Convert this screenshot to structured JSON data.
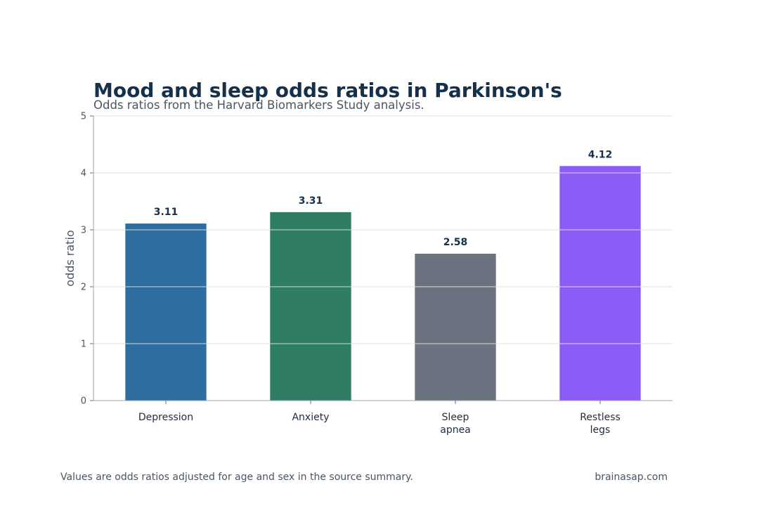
{
  "header": {
    "title": "Mood and sleep odds ratios in Parkinson's",
    "subtitle": "Odds ratios from the Harvard Biomarkers Study analysis."
  },
  "footer": {
    "note": "Values are odds ratios adjusted for age and sex in the source summary.",
    "source": "brainasap.com"
  },
  "chart_data": {
    "type": "bar",
    "title": "Mood and sleep odds ratios in Parkinson's",
    "subtitle": "Odds ratios from the Harvard Biomarkers Study analysis.",
    "xlabel": "",
    "ylabel": "odds ratio",
    "categories": [
      "Depression",
      "Anxiety",
      "Sleep apnea",
      "Restless legs"
    ],
    "category_lines": [
      [
        "Depression"
      ],
      [
        "Anxiety"
      ],
      [
        "Sleep",
        "apnea"
      ],
      [
        "Restless",
        "legs"
      ]
    ],
    "values": [
      3.11,
      3.31,
      2.58,
      4.12
    ],
    "value_labels": [
      "3.11",
      "3.31",
      "2.58",
      "4.12"
    ],
    "colors": [
      "#2e6e9e",
      "#2e7d64",
      "#6b7280",
      "#8b5cf6"
    ],
    "ylim": [
      0,
      5
    ],
    "yticks": [
      0,
      1,
      2,
      3,
      4,
      5
    ],
    "grid": true,
    "legend": "none"
  }
}
